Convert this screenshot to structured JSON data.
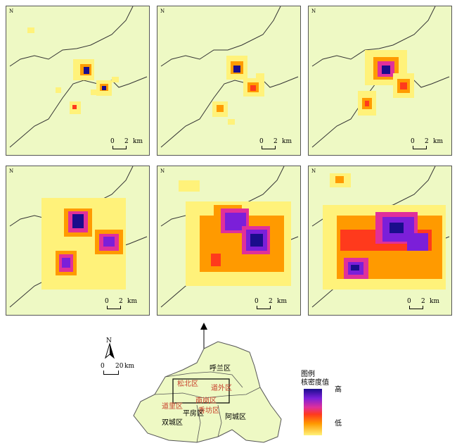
{
  "panels": [
    {
      "id": "p1",
      "scale": {
        "zero": "0",
        "two": "2",
        "unit": "km"
      },
      "north": "N"
    },
    {
      "id": "p2",
      "scale": {
        "zero": "0",
        "two": "2",
        "unit": "km"
      },
      "north": "N"
    },
    {
      "id": "p3",
      "scale": {
        "zero": "0",
        "two": "2",
        "unit": "km"
      },
      "north": "N"
    },
    {
      "id": "p4",
      "scale": {
        "zero": "0",
        "two": "2",
        "unit": "km"
      },
      "north": "N"
    },
    {
      "id": "p5",
      "scale": {
        "zero": "0",
        "two": "2",
        "unit": "km"
      },
      "north": "N"
    },
    {
      "id": "p6",
      "scale": {
        "zero": "0",
        "two": "2",
        "unit": "km"
      },
      "north": "N"
    }
  ],
  "location_map": {
    "north": "N",
    "scale": {
      "zero": "0",
      "value": "20",
      "unit": "km"
    },
    "districts": [
      "呼兰区",
      "松北区",
      "道外区",
      "道里区",
      "南岗区",
      "香坊区",
      "平房区",
      "双城区",
      "阿城区"
    ]
  },
  "legend": {
    "title": "图例",
    "subtitle": "核密度值",
    "high": "高",
    "low": "低"
  },
  "colors": {
    "background": "#eef9c4",
    "low": "#fff27a",
    "mid": "#ff9a00",
    "high_red": "#ff3a1c",
    "high_magenta": "#e0309b",
    "high_purple": "#7b1fd9",
    "peak": "#1a0d8c",
    "boundary": "#c8402b"
  }
}
